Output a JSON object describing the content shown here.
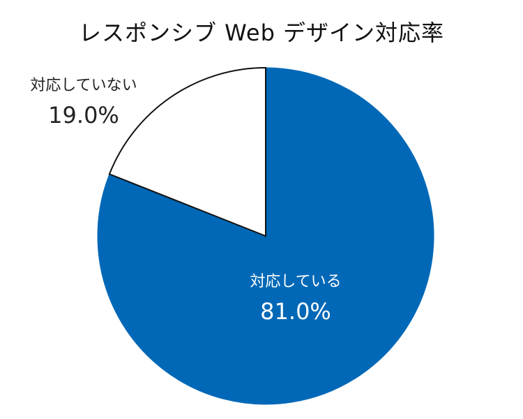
{
  "chart_data": {
    "type": "pie",
    "title": "レスポンシブ Web デザイン対応率",
    "slices": [
      {
        "label": "対応している",
        "value": 81.0,
        "value_label": "81.0%",
        "color": "#0068b7",
        "label_color": "#ffffff"
      },
      {
        "label": "対応していない",
        "value": 19.0,
        "value_label": "19.0%",
        "color": "#ffffff",
        "label_color": "#222222"
      }
    ],
    "start": "12 o'clock",
    "direction": "clockwise",
    "legend": "none"
  }
}
